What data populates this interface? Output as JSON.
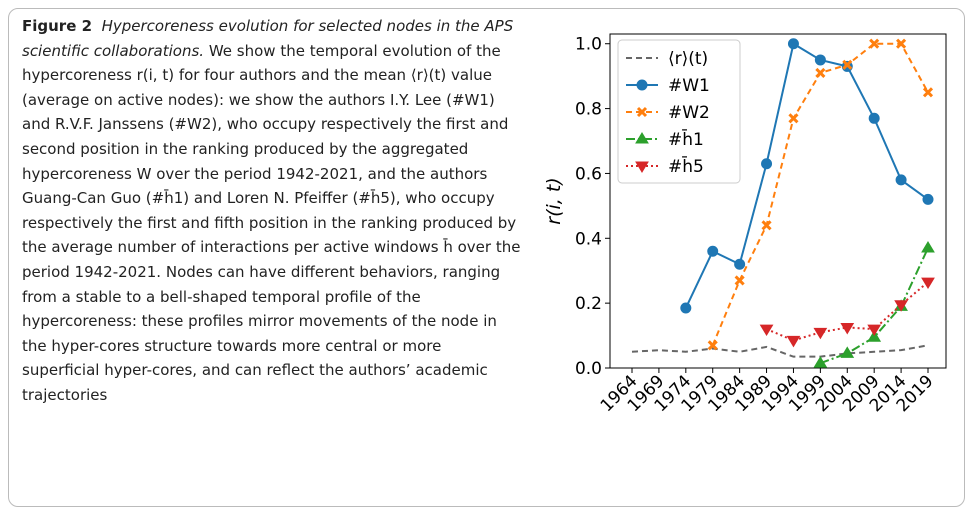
{
  "caption": {
    "label": "Figure 2",
    "title": "Hypercoreness evolution for selected nodes in the APS scientific collaborations.",
    "body": "We show the temporal evolution of the hypercoreness r(i, t) for four authors and the mean ⟨r⟩(t) value (average on active nodes): we show the authors I.Y. Lee (#W1) and R.V.F. Janssens (#W2), who occupy respectively the first and second position in the ranking produced by the aggregated hypercoreness W over the period 1942-2021, and the authors Guang-Can Guo (#h̄1) and Loren N. Pfeiffer (#h̄5), who occupy respectively the first and fifth position in the ranking produced by the average number of interactions per active windows h̄ over the period 1942-2021. Nodes can have different behaviors, ranging from a stable to a bell-shaped temporal profile of the hypercoreness: these profiles mirror movements of the node in the hyper-cores structure towards more central or more superficial hyper-cores, and can reflect the authors’ academic trajectories"
  },
  "chart_data": {
    "type": "line",
    "y_label": "r(i, t)",
    "categories": [
      "1964",
      "1969",
      "1974",
      "1979",
      "1984",
      "1989",
      "1994",
      "1999",
      "2004",
      "2009",
      "2014",
      "2019"
    ],
    "series": [
      {
        "name": "⟨r⟩(t)",
        "color": "#666666",
        "dash": "6,4",
        "marker": "none",
        "values": [
          0.05,
          0.055,
          0.05,
          0.06,
          0.05,
          0.065,
          0.035,
          0.035,
          0.045,
          0.05,
          0.055,
          0.07
        ]
      },
      {
        "name": "#W1",
        "color": "#1f77b4",
        "dash": "none",
        "marker": "circle",
        "values": [
          null,
          null,
          0.185,
          0.36,
          0.32,
          0.63,
          1.0,
          0.95,
          0.93,
          0.77,
          0.58,
          0.52
        ]
      },
      {
        "name": "#W2",
        "color": "#ff7f0e",
        "dash": "6,4",
        "marker": "x",
        "values": [
          null,
          null,
          null,
          0.07,
          0.27,
          0.44,
          0.77,
          0.91,
          0.935,
          1.0,
          1.0,
          0.85
        ]
      },
      {
        "name": "#h̄1",
        "color": "#2ca02c",
        "dash": "9,3,2,3",
        "marker": "triangle-up",
        "values": [
          null,
          null,
          null,
          null,
          null,
          null,
          null,
          0.015,
          0.045,
          0.095,
          0.19,
          0.37
        ]
      },
      {
        "name": "#h̄5",
        "color": "#d62728",
        "dash": "2,3",
        "marker": "triangle-down",
        "values": [
          null,
          null,
          null,
          null,
          null,
          0.12,
          0.085,
          0.11,
          0.125,
          0.12,
          0.195,
          0.265
        ]
      }
    ],
    "ylim": [
      0,
      1.03
    ],
    "yticks": [
      {
        "value": 0,
        "label": "0.0"
      },
      0.2,
      0.4,
      0.6,
      0.8,
      {
        "value": 1,
        "label": "1.0"
      }
    ],
    "legend": "upper-left"
  }
}
